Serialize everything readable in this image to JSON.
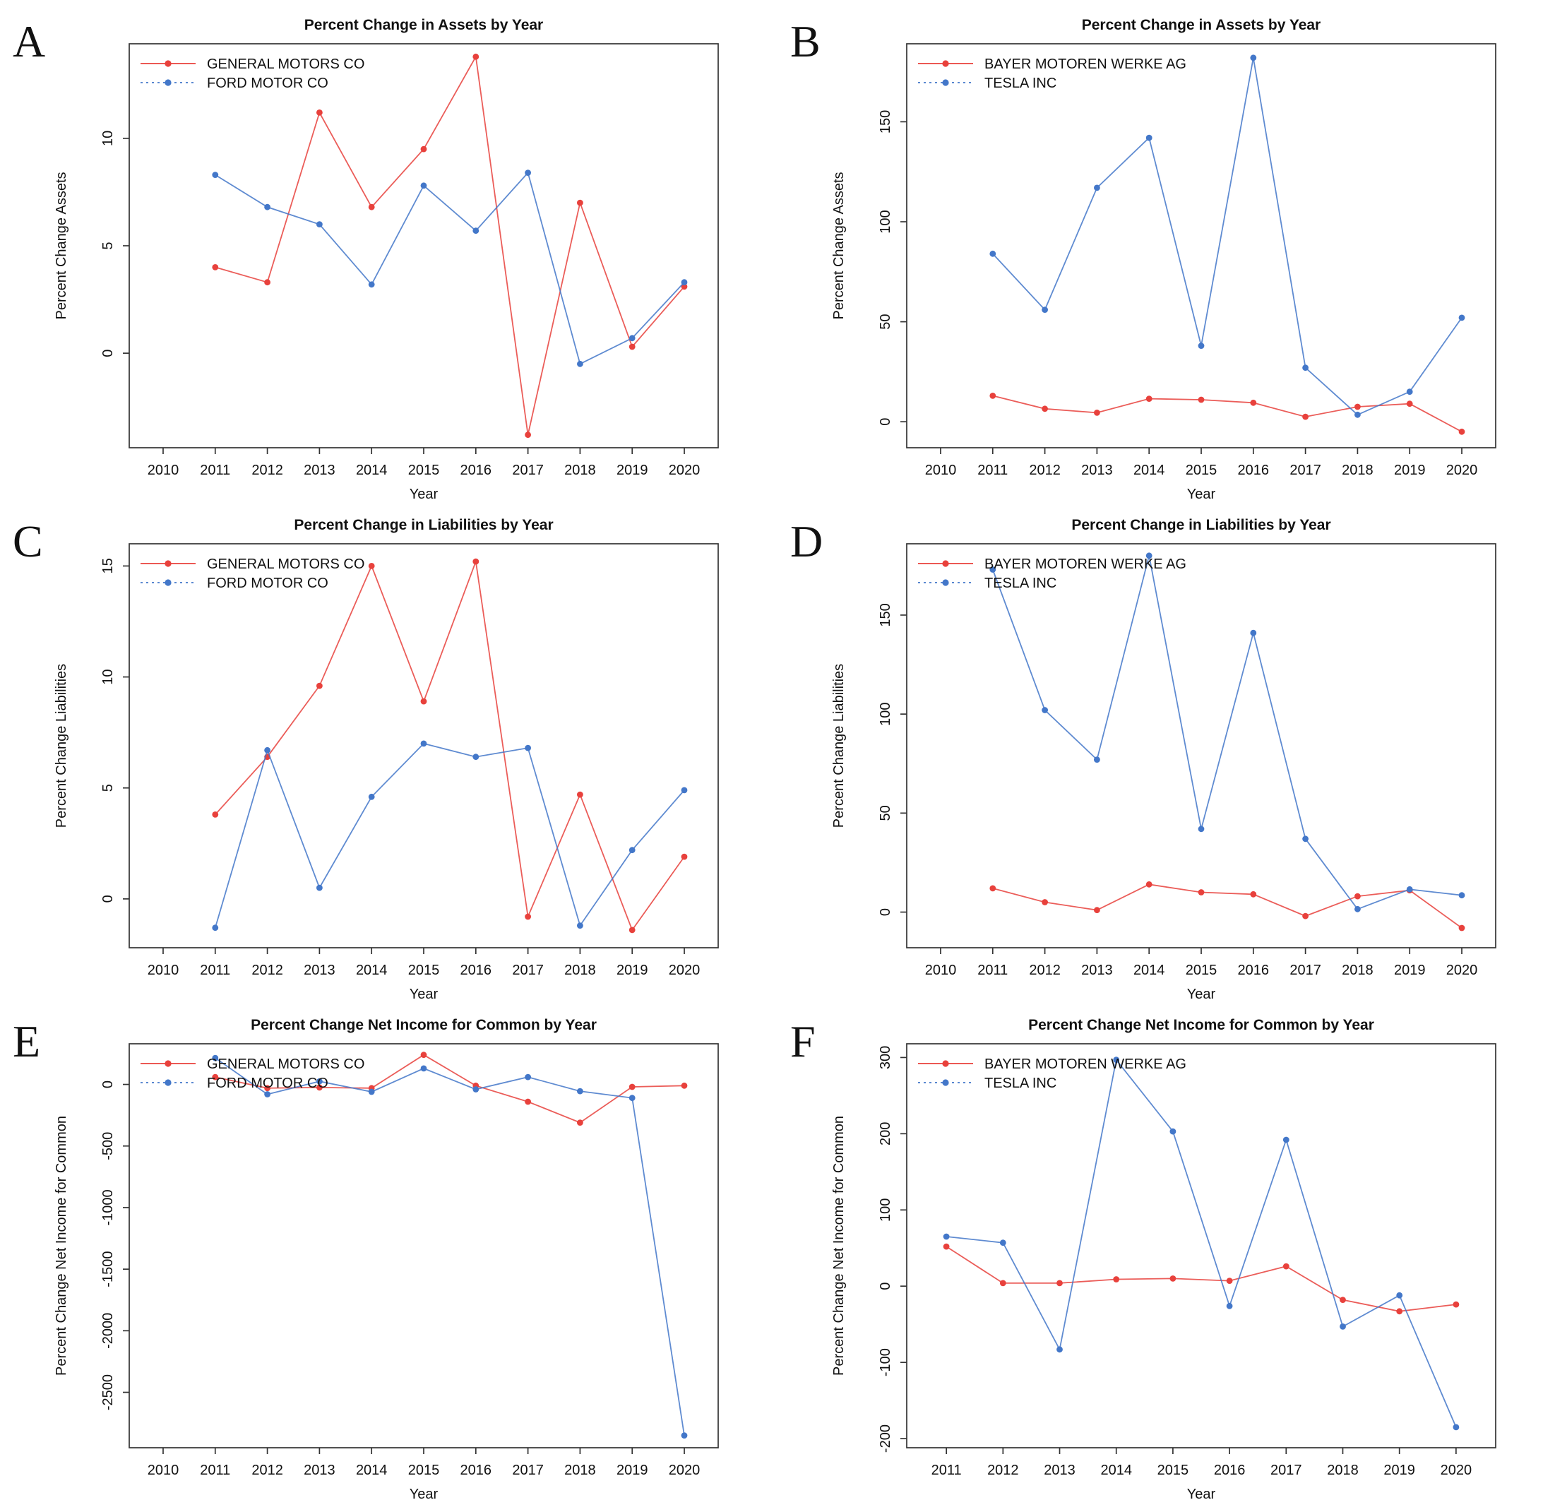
{
  "figure": {
    "background": "#ffffff",
    "panel_letters": [
      "A",
      "B",
      "C",
      "D",
      "E",
      "F"
    ]
  },
  "colors": {
    "red": "#e8413c",
    "blue": "#4377c9",
    "axis": "#333333",
    "text": "#111111"
  },
  "chart_data": [
    {
      "letter": "A",
      "type": "line",
      "title": "Percent Change in Assets by Year",
      "xlabel": "Year",
      "ylabel": "Percent Change Assets",
      "grid": false,
      "legend_position": "top-left",
      "x": [
        2011,
        2012,
        2013,
        2014,
        2015,
        2016,
        2017,
        2018,
        2019,
        2020
      ],
      "xticks": [
        2010,
        2011,
        2012,
        2013,
        2014,
        2015,
        2016,
        2017,
        2018,
        2019,
        2020
      ],
      "xlim": [
        2009.35,
        2020.65
      ],
      "ylim": [
        -4.4,
        14.4
      ],
      "yticks": [
        0,
        5,
        10
      ],
      "series": [
        {
          "name": "GENERAL MOTORS CO",
          "color": "red",
          "line": "solid",
          "legend_dash": "",
          "values": [
            4.0,
            3.3,
            11.2,
            6.8,
            9.5,
            13.8,
            -3.8,
            7.0,
            0.3,
            3.1
          ]
        },
        {
          "name": "FORD MOTOR CO",
          "color": "blue",
          "line": "solid",
          "legend_dash": "3 5",
          "values": [
            8.3,
            6.8,
            6.0,
            3.2,
            7.8,
            5.7,
            8.4,
            -0.5,
            0.7,
            3.3
          ]
        }
      ]
    },
    {
      "letter": "B",
      "type": "line",
      "title": "Percent Change in Assets by Year",
      "xlabel": "Year",
      "ylabel": "Percent Change Assets",
      "grid": false,
      "legend_position": "top-left",
      "x": [
        2011,
        2012,
        2013,
        2014,
        2015,
        2016,
        2017,
        2018,
        2019,
        2020
      ],
      "xticks": [
        2010,
        2011,
        2012,
        2013,
        2014,
        2015,
        2016,
        2017,
        2018,
        2019,
        2020
      ],
      "xlim": [
        2009.35,
        2020.65
      ],
      "ylim": [
        -13,
        189
      ],
      "yticks": [
        0,
        50,
        100,
        150
      ],
      "series": [
        {
          "name": "BAYER MOTOREN WERKE AG",
          "color": "red",
          "line": "solid",
          "legend_dash": "",
          "values": [
            13,
            6.5,
            4.5,
            11.5,
            11,
            9.5,
            2.5,
            7.5,
            9,
            -5
          ]
        },
        {
          "name": "TESLA INC",
          "color": "blue",
          "line": "solid",
          "legend_dash": "3 5",
          "values": [
            84,
            56,
            117,
            142,
            38,
            182,
            27,
            3.5,
            15,
            52
          ]
        }
      ]
    },
    {
      "letter": "C",
      "type": "line",
      "title": "Percent Change in Liabilities by Year",
      "xlabel": "Year",
      "ylabel": "Percent Change Liabilities",
      "grid": false,
      "legend_position": "top-left",
      "x": [
        2011,
        2012,
        2013,
        2014,
        2015,
        2016,
        2017,
        2018,
        2019,
        2020
      ],
      "xticks": [
        2010,
        2011,
        2012,
        2013,
        2014,
        2015,
        2016,
        2017,
        2018,
        2019,
        2020
      ],
      "xlim": [
        2009.35,
        2020.65
      ],
      "ylim": [
        -2.2,
        16.0
      ],
      "yticks": [
        0,
        5,
        10,
        15
      ],
      "series": [
        {
          "name": "GENERAL MOTORS CO",
          "color": "red",
          "line": "solid",
          "legend_dash": "",
          "values": [
            3.8,
            6.4,
            9.6,
            15.0,
            8.9,
            15.2,
            -0.8,
            4.7,
            -1.4,
            1.9
          ]
        },
        {
          "name": "FORD MOTOR CO",
          "color": "blue",
          "line": "solid",
          "legend_dash": "3 5",
          "values": [
            -1.3,
            6.7,
            0.5,
            4.6,
            7.0,
            6.4,
            6.8,
            -1.2,
            2.2,
            4.9
          ]
        }
      ]
    },
    {
      "letter": "D",
      "type": "line",
      "title": "Percent Change in Liabilities by Year",
      "xlabel": "Year",
      "ylabel": "Percent Change Liabilities",
      "grid": false,
      "legend_position": "top-left",
      "x": [
        2011,
        2012,
        2013,
        2014,
        2015,
        2016,
        2017,
        2018,
        2019,
        2020
      ],
      "xticks": [
        2010,
        2011,
        2012,
        2013,
        2014,
        2015,
        2016,
        2017,
        2018,
        2019,
        2020
      ],
      "xlim": [
        2009.35,
        2020.65
      ],
      "ylim": [
        -18,
        186
      ],
      "yticks": [
        0,
        50,
        100,
        150
      ],
      "series": [
        {
          "name": "BAYER MOTOREN WERKE AG",
          "color": "red",
          "line": "solid",
          "legend_dash": "",
          "values": [
            12,
            5,
            1,
            14,
            10,
            9,
            -2,
            8,
            11,
            -8
          ]
        },
        {
          "name": "TESLA INC",
          "color": "blue",
          "line": "solid",
          "legend_dash": "3 5",
          "values": [
            173,
            102,
            77,
            180,
            42,
            141,
            37,
            1.5,
            11.5,
            8.5
          ]
        }
      ]
    },
    {
      "letter": "E",
      "type": "line",
      "title": "Percent Change Net Income for Common by Year",
      "xlabel": "Year",
      "ylabel": "Percent Change Net Income for Common",
      "grid": false,
      "legend_position": "top-left",
      "x": [
        2011,
        2012,
        2013,
        2014,
        2015,
        2016,
        2017,
        2018,
        2019,
        2020
      ],
      "xticks": [
        2010,
        2011,
        2012,
        2013,
        2014,
        2015,
        2016,
        2017,
        2018,
        2019,
        2020
      ],
      "xlim": [
        2009.35,
        2020.65
      ],
      "ylim": [
        -2950,
        330
      ],
      "yticks": [
        0,
        -500,
        -1000,
        -1500,
        -2000,
        -2500
      ],
      "series": [
        {
          "name": "GENERAL MOTORS CO",
          "color": "red",
          "line": "solid",
          "legend_dash": "",
          "values": [
            60,
            -30,
            -25,
            -30,
            240,
            -10,
            -140,
            -310,
            -20,
            -10
          ]
        },
        {
          "name": "FORD MOTOR CO",
          "color": "blue",
          "line": "solid",
          "legend_dash": "3 5",
          "values": [
            215,
            -80,
            25,
            -60,
            130,
            -40,
            60,
            -55,
            -110,
            -2850
          ]
        }
      ]
    },
    {
      "letter": "F",
      "type": "line",
      "title": "Percent Change Net Income for Common by Year",
      "xlabel": "Year",
      "ylabel": "Percent Change Net Income for Common",
      "grid": false,
      "legend_position": "top-left",
      "x": [
        2011,
        2012,
        2013,
        2014,
        2015,
        2016,
        2017,
        2018,
        2019,
        2020
      ],
      "xticks": [
        2011,
        2012,
        2013,
        2014,
        2015,
        2016,
        2017,
        2018,
        2019,
        2020
      ],
      "xlim": [
        2010.3,
        2020.7
      ],
      "ylim": [
        -212,
        318
      ],
      "yticks": [
        -200,
        -100,
        0,
        100,
        200,
        300
      ],
      "series": [
        {
          "name": "BAYER MOTOREN WERKE AG",
          "color": "red",
          "line": "solid",
          "legend_dash": "",
          "values": [
            52,
            4,
            4,
            9,
            10,
            7,
            26,
            -18,
            -33,
            -24
          ]
        },
        {
          "name": "TESLA INC",
          "color": "blue",
          "line": "solid",
          "legend_dash": "3 5",
          "values": [
            65,
            57,
            -83,
            297,
            203,
            -26,
            192,
            -53,
            -12,
            -185
          ]
        }
      ]
    }
  ]
}
